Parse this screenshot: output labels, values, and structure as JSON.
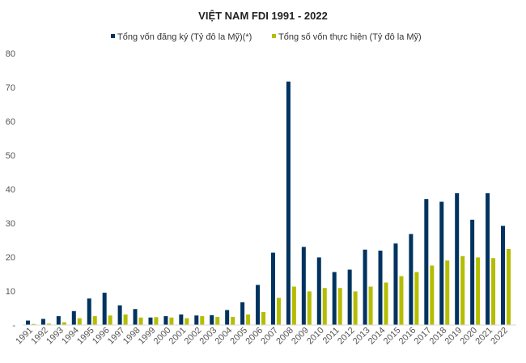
{
  "chart_data": {
    "type": "bar",
    "title": "VIỆT NAM FDI 1991 - 2022",
    "xlabel": "",
    "ylabel": "",
    "ylim": [
      0,
      80
    ],
    "yticks": [
      0,
      10,
      20,
      30,
      40,
      50,
      60,
      70,
      80
    ],
    "ytick_labels": [
      "-",
      "10",
      "20",
      "30",
      "40",
      "50",
      "60",
      "70",
      "80"
    ],
    "grid": false,
    "legend_position": "top",
    "categories": [
      "1991",
      "1992",
      "1993",
      "1994",
      "1995",
      "1996",
      "1997",
      "1998",
      "1999",
      "2000",
      "2001",
      "2002",
      "2003",
      "2004",
      "2005",
      "2006",
      "2007",
      "2008",
      "2009",
      "2010",
      "2011",
      "2012",
      "2013",
      "2014",
      "2015",
      "2016",
      "2017",
      "2018",
      "2019",
      "2020",
      "2021",
      "2022"
    ],
    "series": [
      {
        "name": "Tổng vốn đăng ký (Tỷ đô la Mỹ)(*)",
        "color": "#00335f",
        "values": [
          1.3,
          1.8,
          2.6,
          4.1,
          7.8,
          9.5,
          5.8,
          4.7,
          2.2,
          2.6,
          3.1,
          2.8,
          2.9,
          4.4,
          6.7,
          11.8,
          21.3,
          71.7,
          23.0,
          19.9,
          15.6,
          16.3,
          22.2,
          21.9,
          24.0,
          26.8,
          37.1,
          36.3,
          38.8,
          31.0,
          38.8,
          29.2
        ]
      },
      {
        "name": "Tổng số vốn thực hiện (Tỷ đô la Mỹ)",
        "color": "#b5bd00",
        "values": [
          0.3,
          0.4,
          0.8,
          2.0,
          2.6,
          2.8,
          3.1,
          2.2,
          2.3,
          2.2,
          2.0,
          2.6,
          2.4,
          2.4,
          3.1,
          3.8,
          8.0,
          11.3,
          9.9,
          10.9,
          10.9,
          9.9,
          11.3,
          12.5,
          14.4,
          15.6,
          17.5,
          19.0,
          20.3,
          19.9,
          19.7,
          22.4
        ]
      }
    ]
  }
}
